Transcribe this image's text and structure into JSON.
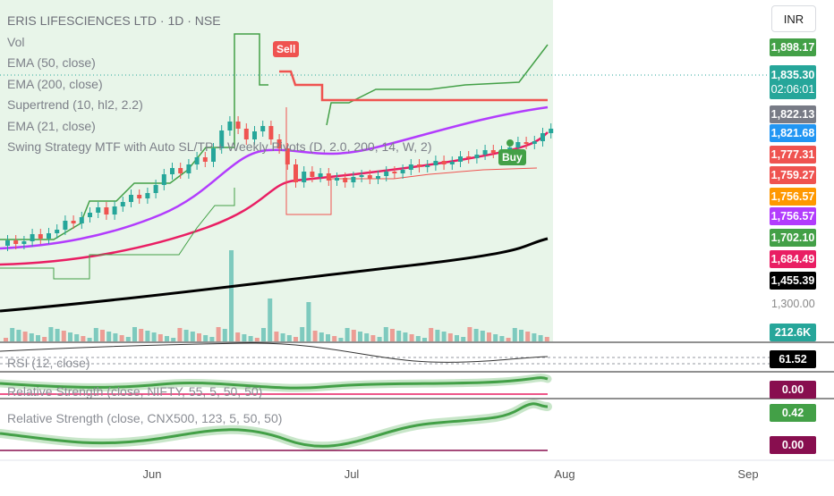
{
  "header": {
    "symbol_title": "ERIS LIFESCIENCES LTD · 1D · NSE",
    "currency": "INR"
  },
  "legend": {
    "items": [
      "Vol",
      "EMA (50, close)",
      "EMA (200, close)",
      "Supertrend (10, hl2, 2.2)",
      "EMA (21, close)",
      "Swing Strategy MTF with Auto SL/TP + Weekly Pivots (D, 2.0, 200, 14, W, 2)"
    ]
  },
  "signals": {
    "sell": "Sell",
    "buy": "Buy"
  },
  "price_scale": {
    "tags": [
      {
        "value": "1,898.17",
        "color": "#43a047"
      },
      {
        "value": "1,835.30",
        "sub": "02:06:01",
        "color": "#26a69a"
      },
      {
        "value": "1,822.13",
        "color": "#787b86"
      },
      {
        "value": "1,821.68",
        "color": "#2196f3"
      },
      {
        "value": "1,777.31",
        "color": "#ef5350"
      },
      {
        "value": "1,759.27",
        "color": "#ef5350"
      },
      {
        "value": "1,756.57",
        "color": "#ff9800"
      },
      {
        "value": "1,756.57",
        "color": "#b23cfd"
      },
      {
        "value": "1,702.10",
        "color": "#43a047"
      },
      {
        "value": "1,684.49",
        "color": "#e91e63"
      },
      {
        "value": "1,455.39",
        "color": "#000000"
      }
    ],
    "plain_level": "1,300.00",
    "volume_tag": {
      "value": "212.6K",
      "color": "#26a69a"
    }
  },
  "panes": {
    "rsi": {
      "label": "RSI (12, close)",
      "value": "61.52",
      "color": "#000000"
    },
    "rs_nifty": {
      "label": "Relative Strength (close, NIFTY, 55, 5, 50, 50)",
      "value": "0.00",
      "color": "#880e4f"
    },
    "rs_cnx500": {
      "label": "Relative Strength (close, CNX500, 123, 5, 50, 50)",
      "value": "0.42",
      "zero": "0.00",
      "color": "#43a047",
      "zero_color": "#880e4f"
    }
  },
  "time_axis": [
    "Jun",
    "Jul",
    "Aug",
    "Sep"
  ],
  "colors": {
    "up": "#26a69a",
    "down": "#ef5350",
    "ema50": "#e91e63",
    "ema200": "#000000",
    "ema21": "#b23cfd",
    "supertrend_up": "#43a047",
    "supertrend_down": "#ef5350",
    "shade": "#e8f5e9"
  }
}
